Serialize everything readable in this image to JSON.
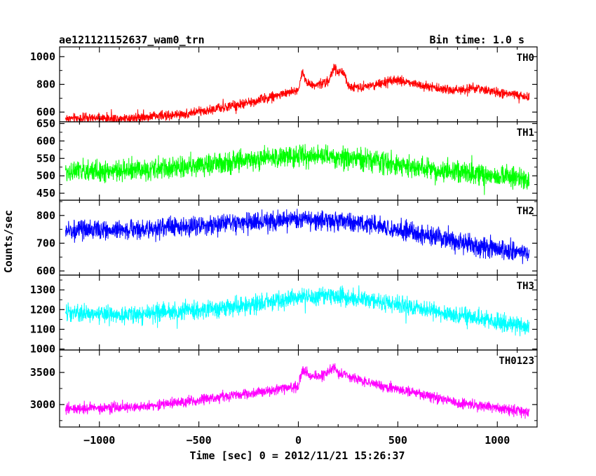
{
  "header": {
    "title": "ae121121152637_wam0_trn",
    "bin_time": "Bin time: 1.0 s"
  },
  "axes": {
    "xlabel": "Time [sec] 0 = 2012/11/21 15:26:37",
    "ylabel": "Counts/sec"
  },
  "chart_data": {
    "type": "line",
    "title": "ae121121152637_wam0_trn",
    "subtitle": "Bin time: 1.0 s",
    "xlabel": "Time [sec] 0 = 2012/11/21 15:26:37",
    "ylabel": "Counts/sec",
    "xlim": [
      -1200,
      1200
    ],
    "x_range": [
      -1170,
      1160
    ],
    "x_ticks": [
      -1000,
      -500,
      0,
      500,
      1000
    ],
    "x_tick_labels": [
      "−1000",
      "−500",
      "0",
      "500",
      "1000"
    ],
    "panels": [
      {
        "name": "TH0",
        "color": "#ff0000",
        "ylim": [
          530,
          1070
        ],
        "y_ticks": [
          600,
          800,
          1000
        ],
        "noise": 32,
        "profile_x": [
          -1170,
          -900,
          -600,
          -300,
          0,
          20,
          50,
          100,
          150,
          180,
          200,
          220,
          250,
          300,
          400,
          500,
          600,
          700,
          800,
          900,
          1000,
          1100,
          1160
        ],
        "profile_y": [
          555,
          555,
          580,
          650,
          760,
          890,
          800,
          800,
          820,
          920,
          880,
          900,
          790,
          780,
          800,
          830,
          800,
          770,
          760,
          770,
          740,
          720,
          710
        ]
      },
      {
        "name": "TH1",
        "color": "#00ff00",
        "ylim": [
          430,
          655
        ],
        "y_ticks": [
          450,
          500,
          550,
          600,
          650
        ],
        "noise": 28,
        "profile_x": [
          -1170,
          -800,
          -400,
          0,
          300,
          700,
          1160
        ],
        "profile_y": [
          512,
          515,
          535,
          560,
          550,
          515,
          490
        ]
      },
      {
        "name": "TH2",
        "color": "#0000ff",
        "ylim": [
          585,
          855
        ],
        "y_ticks": [
          600,
          700,
          800
        ],
        "noise": 32,
        "profile_x": [
          -1170,
          -800,
          -400,
          0,
          300,
          600,
          900,
          1160
        ],
        "profile_y": [
          745,
          750,
          768,
          785,
          775,
          735,
          690,
          665
        ]
      },
      {
        "name": "TH3",
        "color": "#00ffff",
        "ylim": [
          995,
          1375
        ],
        "y_ticks": [
          1000,
          1100,
          1200,
          1300
        ],
        "noise": 42,
        "profile_x": [
          -1170,
          -800,
          -400,
          0,
          200,
          500,
          800,
          1160
        ],
        "profile_y": [
          1180,
          1175,
          1205,
          1260,
          1270,
          1225,
          1170,
          1115
        ]
      },
      {
        "name": "TH0123",
        "color": "#ff00ff",
        "ylim": [
          2650,
          3850
        ],
        "y_ticks": [
          3000,
          3500
        ],
        "noise": 75,
        "profile_x": [
          -1170,
          -800,
          -400,
          0,
          20,
          60,
          100,
          150,
          180,
          200,
          220,
          250,
          400,
          600,
          800,
          1000,
          1160
        ],
        "profile_y": [
          2930,
          2960,
          3110,
          3280,
          3550,
          3430,
          3440,
          3500,
          3600,
          3460,
          3500,
          3440,
          3300,
          3180,
          3030,
          2940,
          2880
        ]
      }
    ]
  }
}
